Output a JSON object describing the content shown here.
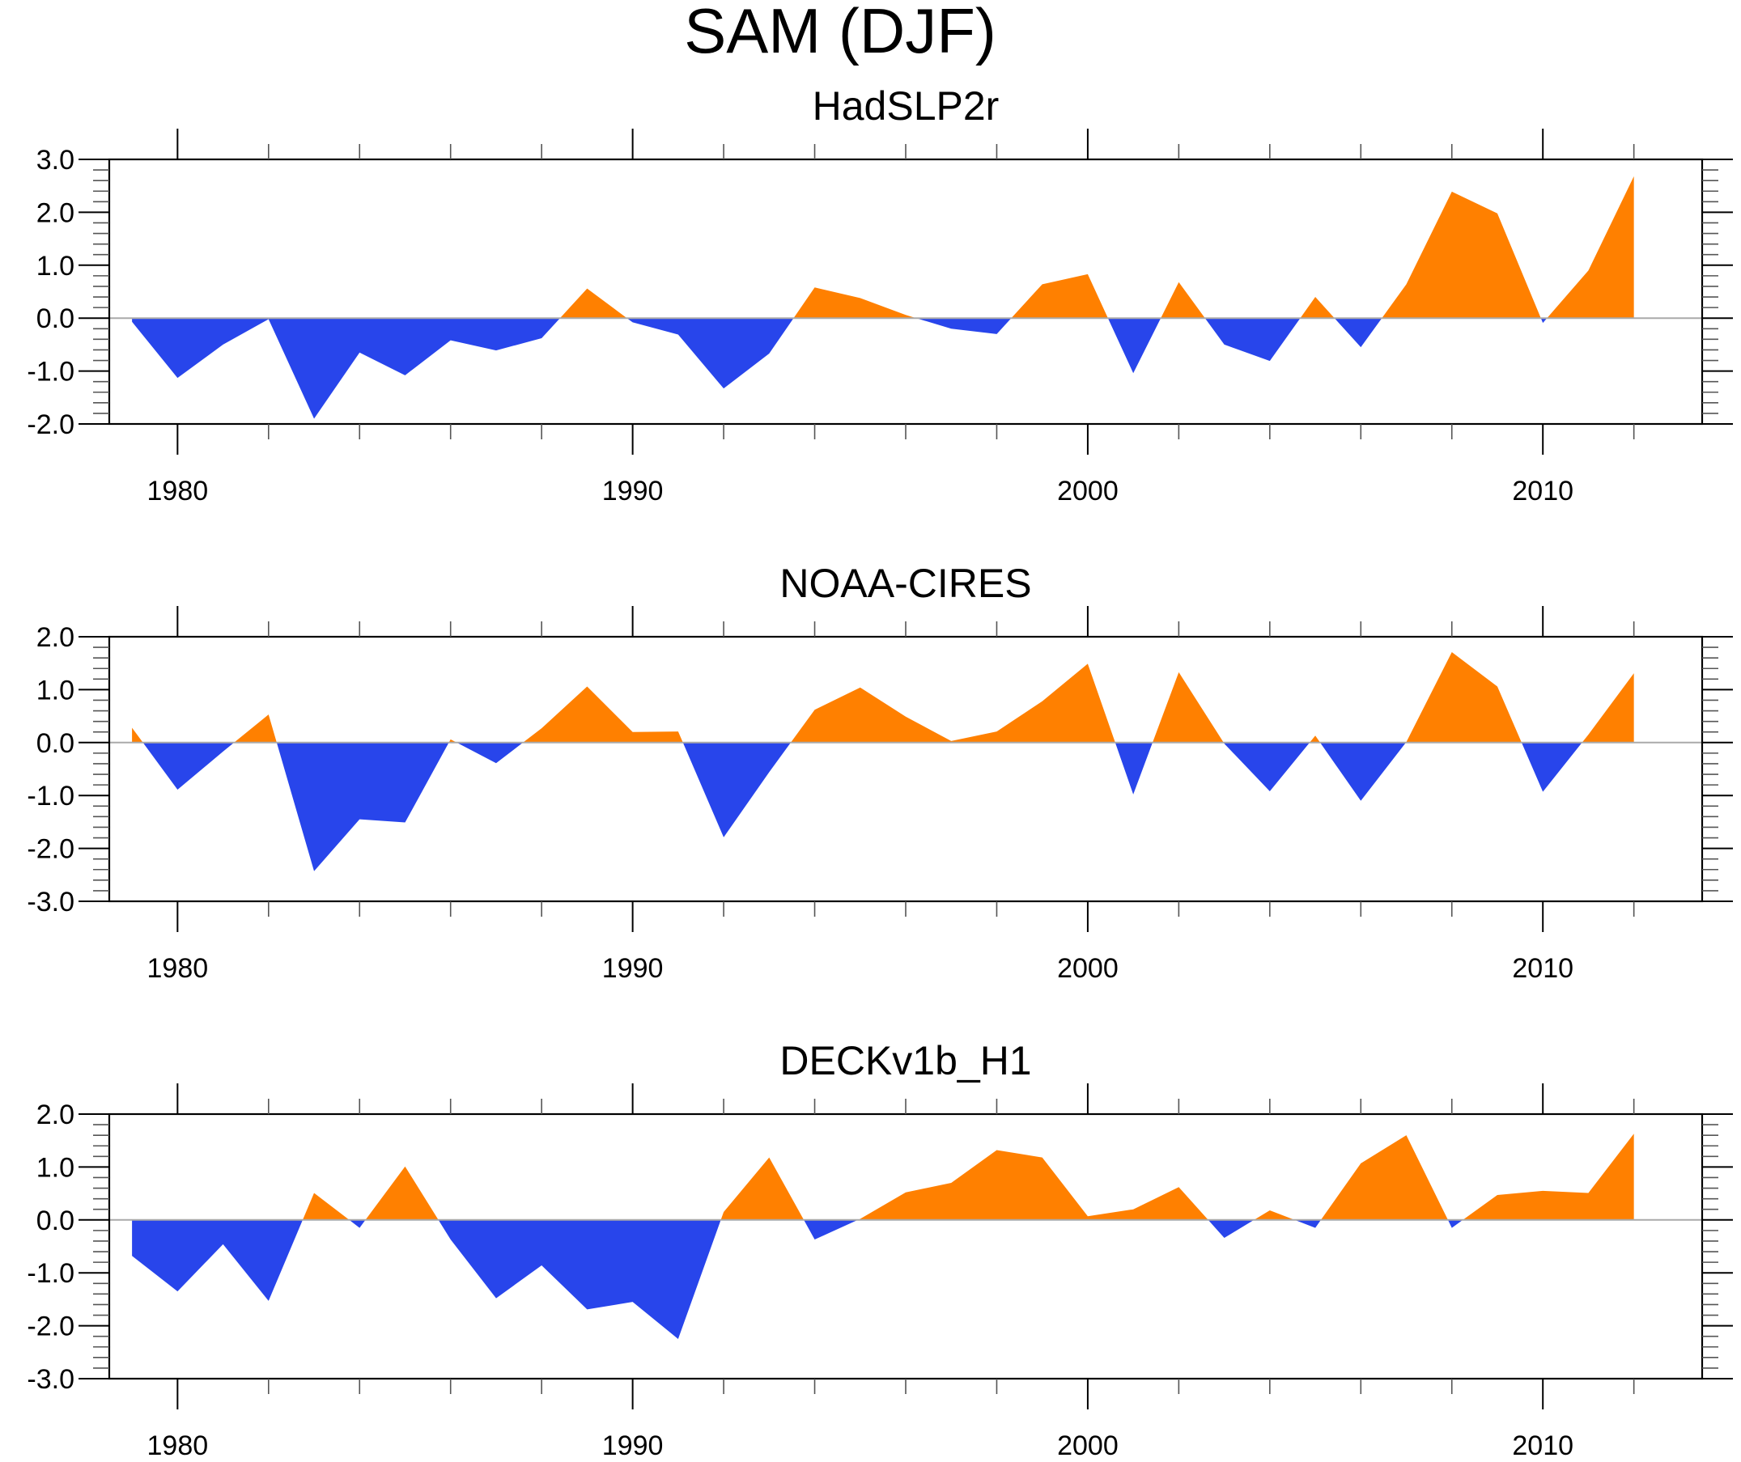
{
  "chart_data": {
    "type": "area",
    "title": "SAM (DJF)",
    "fill_positive_color": "#FF8000",
    "fill_negative_color": "#2845EB",
    "reference_line_value": 0.0,
    "reference_line_color": "#AAAAAA",
    "x": [
      1979,
      1980,
      1981,
      1982,
      1983,
      1984,
      1985,
      1986,
      1987,
      1988,
      1989,
      1990,
      1991,
      1992,
      1993,
      1994,
      1995,
      1996,
      1997,
      1998,
      1999,
      2000,
      2001,
      2002,
      2003,
      2004,
      2005,
      2006,
      2007,
      2008,
      2009,
      2010,
      2011,
      2012
    ],
    "xlim": [
      1978.5,
      2013.5
    ],
    "x_major_ticks": [
      1980,
      1990,
      2000,
      2010
    ],
    "x_tick_labels": [
      "1980",
      "1990",
      "2000",
      "2010"
    ],
    "x_minor_step": 2,
    "grid": false,
    "panels": [
      {
        "title": "HadSLP2r",
        "ylim": [
          -2.0,
          3.0
        ],
        "y_major_ticks": [
          -2.0,
          -1.0,
          0.0,
          1.0,
          2.0,
          3.0
        ],
        "y_tick_labels": [
          "-2.0",
          "-1.0",
          "0.0",
          "1.0",
          "2.0",
          "3.0"
        ],
        "values": [
          -0.07,
          -1.13,
          -0.5,
          -0.02,
          -1.9,
          -0.65,
          -1.08,
          -0.42,
          -0.61,
          -0.38,
          0.56,
          -0.08,
          -0.31,
          -1.33,
          -0.67,
          0.58,
          0.38,
          0.06,
          -0.2,
          -0.3,
          0.64,
          0.83,
          -1.04,
          0.68,
          -0.5,
          -0.81,
          0.4,
          -0.55,
          0.64,
          2.39,
          1.98,
          -0.09,
          0.9,
          2.68
        ]
      },
      {
        "title": "NOAA-CIRES",
        "ylim": [
          -3.0,
          2.0
        ],
        "y_major_ticks": [
          -3.0,
          -2.0,
          -1.0,
          0.0,
          1.0,
          2.0
        ],
        "y_tick_labels": [
          "-3.0",
          "-2.0",
          "-1.0",
          "0.0",
          "1.0",
          "2.0"
        ],
        "values": [
          0.28,
          -0.89,
          -0.17,
          0.53,
          -2.43,
          -1.45,
          -1.51,
          0.06,
          -0.39,
          0.27,
          1.06,
          0.2,
          0.21,
          -1.79,
          -0.56,
          0.62,
          1.04,
          0.49,
          0.03,
          0.21,
          0.78,
          1.49,
          -0.98,
          1.33,
          -0.02,
          -0.92,
          0.13,
          -1.1,
          0.01,
          1.71,
          1.06,
          -0.93,
          0.15,
          1.31
        ]
      },
      {
        "title": "DECKv1b_H1",
        "ylim": [
          -3.0,
          2.0
        ],
        "y_major_ticks": [
          -3.0,
          -2.0,
          -1.0,
          0.0,
          1.0,
          2.0
        ],
        "y_tick_labels": [
          "-3.0",
          "-2.0",
          "-1.0",
          "0.0",
          "1.0",
          "2.0"
        ],
        "values": [
          -0.68,
          -1.35,
          -0.46,
          -1.53,
          0.51,
          -0.15,
          1.01,
          -0.37,
          -1.48,
          -0.86,
          -1.69,
          -1.55,
          -2.25,
          0.15,
          1.18,
          -0.37,
          0.02,
          0.52,
          0.7,
          1.32,
          1.18,
          0.07,
          0.2,
          0.62,
          -0.34,
          0.18,
          -0.15,
          1.07,
          1.6,
          -0.15,
          0.47,
          0.55,
          0.51,
          1.63
        ]
      }
    ]
  }
}
